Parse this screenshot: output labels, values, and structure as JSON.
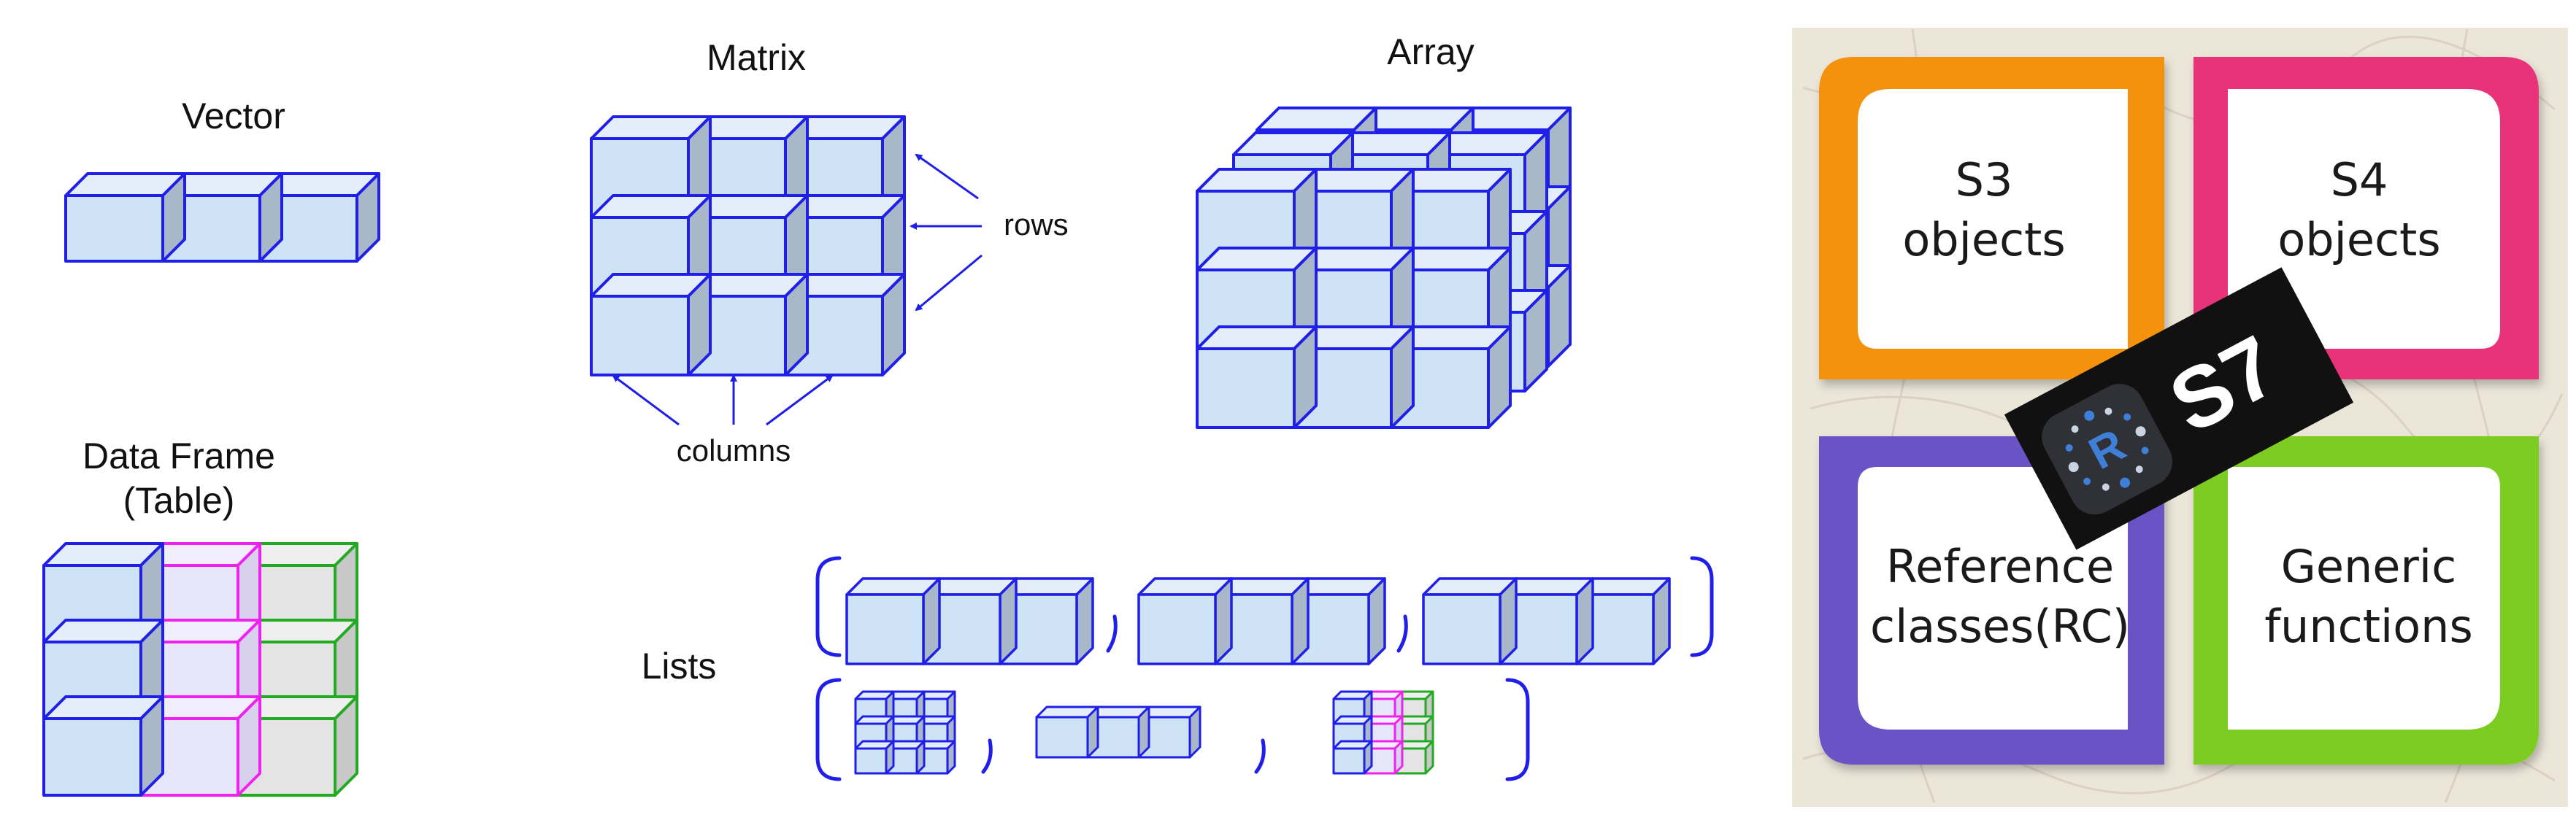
{
  "labels": {
    "vector": "Vector",
    "matrix": "Matrix",
    "array": "Array",
    "dataframe_line1": "Data Frame",
    "dataframe_line2": "(Table)",
    "rows": "rows",
    "columns": "columns",
    "lists": "Lists"
  },
  "oop_panel": {
    "s3_line1": "S3",
    "s3_line2": "objects",
    "s4_line1": "S4",
    "s4_line2": "objects",
    "rc_line1": "Reference",
    "rc_line2": "classes(RC)",
    "gf_line1": "Generic",
    "gf_line2": "functions",
    "badge_letter": "R",
    "badge_text": "S7"
  },
  "colors": {
    "cube_fill": "#cfe3f6",
    "cube_top": "#e3eefa",
    "cube_side": "#a9b8c9",
    "cube_stroke": "#1f1fe8",
    "magenta": "#ee22ee",
    "magenta_fill": "#e8e6fb",
    "green": "#22aa22",
    "green_fill": "#e4e4e4",
    "s3_frame": "#f5920f",
    "s4_frame": "#e8337a",
    "rc_frame": "#6a52c4",
    "gf_frame": "#7ccc22",
    "badge_bg": "#111111"
  }
}
